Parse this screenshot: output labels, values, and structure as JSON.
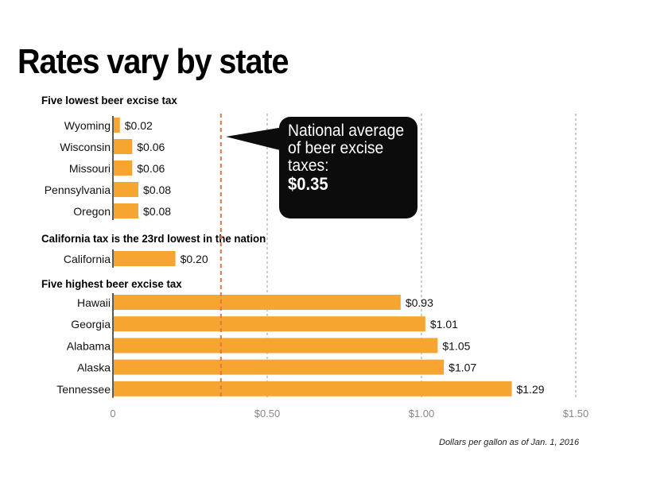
{
  "title": "Rates vary by state",
  "sections": [
    "Five lowest beer excise tax",
    "California tax is the 23rd lowest in the nation",
    "Five highest beer excise tax"
  ],
  "callout": {
    "text": "National average of beer excise taxes:",
    "value": "$0.35"
  },
  "footnote": "Dollars per gallon as of Jan. 1, 2016",
  "chart_data": {
    "type": "bar",
    "orientation": "horizontal",
    "title": "Rates vary by state",
    "xlabel": "Dollars per gallon as of Jan. 1, 2016",
    "xlim": [
      0,
      1.5
    ],
    "ticks": [
      {
        "value": 0,
        "label": "0"
      },
      {
        "value": 0.5,
        "label": "$0.50"
      },
      {
        "value": 1.0,
        "label": "$1.00"
      },
      {
        "value": 1.5,
        "label": "$1.50"
      }
    ],
    "bar_color": "#f6a530",
    "reference_line": {
      "value": 0.35,
      "label": "$0.35",
      "color": "#e0763f"
    },
    "groups": [
      {
        "title": "Five lowest beer excise tax",
        "bars": [
          {
            "category": "Wyoming",
            "value": 0.02,
            "label": "$0.02"
          },
          {
            "category": "Wisconsin",
            "value": 0.06,
            "label": "$0.06"
          },
          {
            "category": "Missouri",
            "value": 0.06,
            "label": "$0.06"
          },
          {
            "category": "Pennsylvania",
            "value": 0.08,
            "label": "$0.08"
          },
          {
            "category": "Oregon",
            "value": 0.08,
            "label": "$0.08"
          }
        ]
      },
      {
        "title": "California tax is the 23rd lowest in the nation",
        "bars": [
          {
            "category": "California",
            "value": 0.2,
            "label": "$0.20"
          }
        ]
      },
      {
        "title": "Five highest beer excise tax",
        "bars": [
          {
            "category": "Hawaii",
            "value": 0.93,
            "label": "$0.93"
          },
          {
            "category": "Georgia",
            "value": 1.01,
            "label": "$1.01"
          },
          {
            "category": "Alabama",
            "value": 1.05,
            "label": "$1.05"
          },
          {
            "category": "Alaska",
            "value": 1.07,
            "label": "$1.07"
          },
          {
            "category": "Tennessee",
            "value": 1.29,
            "label": "$1.29"
          }
        ]
      }
    ]
  }
}
